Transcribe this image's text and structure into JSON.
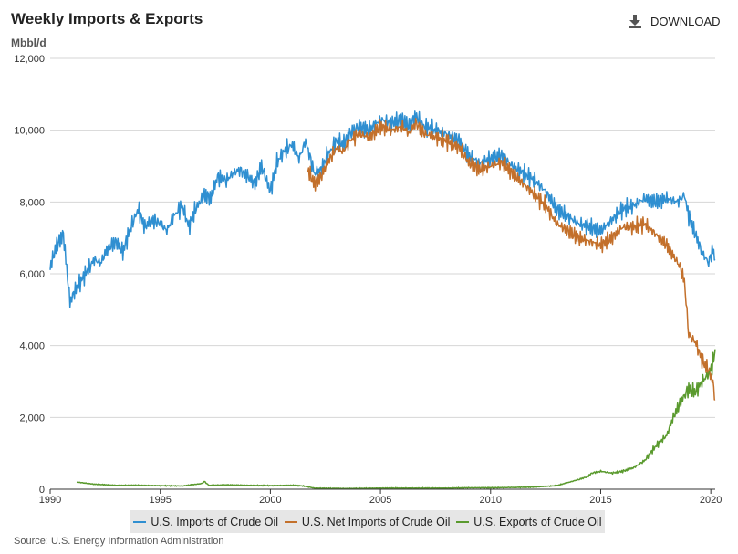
{
  "header": {
    "title": "Weekly Imports & Exports",
    "download_label": "DOWNLOAD",
    "unit_label": "Mbbl/d"
  },
  "footer": {
    "source": "Source: U.S. Energy Information Administration"
  },
  "colors": {
    "imports": "#2f8fd1",
    "net_imports": "#c3702b",
    "exports": "#5a9a2e",
    "grid": "#d6d6d6"
  },
  "chart_data": {
    "type": "line",
    "title": "Weekly Imports & Exports",
    "ylabel": "Mbbl/d",
    "xlabel": "",
    "xlim": [
      1990,
      2020.2
    ],
    "ylim": [
      0,
      12000
    ],
    "x_ticks": [
      1990,
      1995,
      2000,
      2005,
      2010,
      2015,
      2020
    ],
    "y_ticks": [
      0,
      2000,
      4000,
      6000,
      8000,
      10000,
      12000
    ],
    "y_tick_labels": [
      "0",
      "2,000",
      "4,000",
      "6,000",
      "8,000",
      "10,000",
      "12,000"
    ],
    "grid": "horizontal",
    "legend": "bottom",
    "series": [
      {
        "name": "U.S. Imports of Crude Oil",
        "x": [
          1990.0,
          1990.3,
          1990.6,
          1990.9,
          1991.1,
          1991.4,
          1991.7,
          1992.0,
          1992.3,
          1992.6,
          1993.0,
          1993.3,
          1993.6,
          1994.0,
          1994.3,
          1994.6,
          1995.0,
          1995.3,
          1995.6,
          1996.0,
          1996.3,
          1996.6,
          1997.0,
          1997.3,
          1997.6,
          1998.0,
          1998.3,
          1998.6,
          1999.0,
          1999.3,
          1999.6,
          2000.0,
          2000.3,
          2000.6,
          2001.0,
          2001.3,
          2001.6,
          2002.0,
          2002.3,
          2002.6,
          2003.0,
          2003.3,
          2003.6,
          2004.0,
          2004.5,
          2005.0,
          2005.5,
          2006.0,
          2006.3,
          2006.6,
          2007.0,
          2007.5,
          2008.0,
          2008.3,
          2008.6,
          2009.0,
          2009.5,
          2010.0,
          2010.5,
          2011.0,
          2011.5,
          2012.0,
          2012.5,
          2013.0,
          2013.5,
          2014.0,
          2014.5,
          2015.0,
          2015.5,
          2016.0,
          2016.5,
          2017.0,
          2017.5,
          2018.0,
          2018.5,
          2018.8,
          2019.0,
          2019.3,
          2019.6,
          2019.9,
          2020.1,
          2020.2
        ],
        "values": [
          6200,
          6800,
          7100,
          5200,
          5500,
          5800,
          6100,
          6400,
          6300,
          6700,
          6900,
          6600,
          7200,
          7800,
          7300,
          7500,
          7400,
          7200,
          7600,
          7900,
          7300,
          7800,
          8200,
          8100,
          8700,
          8600,
          8800,
          8900,
          8700,
          8500,
          9000,
          8300,
          9100,
          9400,
          9600,
          9200,
          9700,
          8800,
          8900,
          9300,
          9700,
          9600,
          9900,
          10100,
          10000,
          10300,
          10200,
          10300,
          10100,
          10400,
          10100,
          10000,
          9900,
          9800,
          9700,
          9300,
          9100,
          9200,
          9300,
          9000,
          8800,
          8600,
          8300,
          7800,
          7600,
          7400,
          7300,
          7200,
          7500,
          7800,
          7900,
          8100,
          8000,
          8100,
          8000,
          8200,
          7600,
          7100,
          6600,
          6300,
          6700,
          6400
        ]
      },
      {
        "name": "U.S. Net Imports of Crude Oil",
        "x": [
          2001.7,
          2002.0,
          2002.3,
          2002.6,
          2003.0,
          2003.3,
          2003.6,
          2004.0,
          2004.5,
          2005.0,
          2005.5,
          2006.0,
          2006.3,
          2006.6,
          2007.0,
          2007.5,
          2008.0,
          2008.3,
          2008.6,
          2009.0,
          2009.5,
          2010.0,
          2010.5,
          2011.0,
          2011.5,
          2012.0,
          2012.5,
          2013.0,
          2013.5,
          2014.0,
          2014.5,
          2015.0,
          2015.5,
          2016.0,
          2016.5,
          2017.0,
          2017.5,
          2018.0,
          2018.3,
          2018.6,
          2018.8,
          2019.0,
          2019.3,
          2019.6,
          2019.9,
          2020.1,
          2020.2
        ],
        "values": [
          8900,
          8500,
          8700,
          9100,
          9500,
          9400,
          9700,
          9900,
          9800,
          10100,
          10000,
          10100,
          9900,
          10200,
          9900,
          9800,
          9700,
          9600,
          9500,
          9100,
          8900,
          9000,
          9100,
          8800,
          8500,
          8200,
          7900,
          7400,
          7200,
          7000,
          6900,
          6800,
          7000,
          7300,
          7300,
          7400,
          7100,
          6800,
          6500,
          6200,
          5800,
          4300,
          4100,
          3600,
          3300,
          3000,
          2500
        ]
      },
      {
        "name": "U.S. Exports of Crude Oil",
        "x": [
          1991.2,
          1992.0,
          1993.0,
          1994.0,
          1995.0,
          1996.0,
          1996.9,
          1997.0,
          1997.2,
          1998.0,
          1999.0,
          2000.0,
          2001.0,
          2001.5,
          2002.0,
          2003.0,
          2004.0,
          2005.0,
          2006.0,
          2007.0,
          2008.0,
          2009.0,
          2010.0,
          2011.0,
          2012.0,
          2013.0,
          2014.0,
          2014.4,
          2014.6,
          2015.0,
          2015.5,
          2016.0,
          2016.5,
          2017.0,
          2017.5,
          2018.0,
          2018.3,
          2018.6,
          2019.0,
          2019.3,
          2019.6,
          2019.9,
          2020.1,
          2020.2
        ],
        "values": [
          200,
          140,
          110,
          110,
          100,
          90,
          160,
          220,
          110,
          120,
          110,
          100,
          110,
          90,
          30,
          20,
          20,
          30,
          30,
          30,
          30,
          40,
          40,
          50,
          60,
          100,
          270,
          350,
          450,
          500,
          450,
          500,
          600,
          800,
          1200,
          1500,
          2000,
          2400,
          2800,
          2700,
          3000,
          3200,
          3500,
          3900
        ]
      }
    ]
  }
}
